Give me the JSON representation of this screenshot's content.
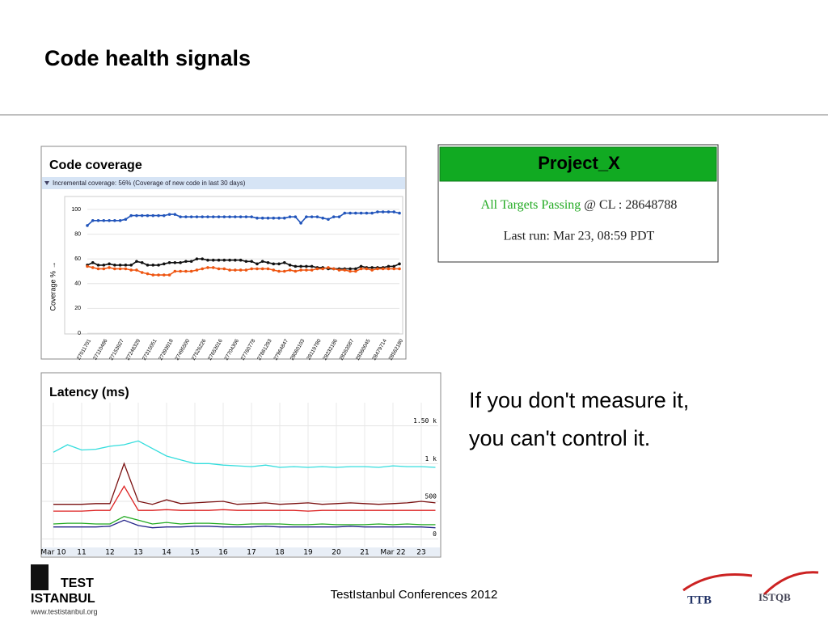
{
  "title": "Code health signals",
  "chart_data": [
    {
      "type": "line",
      "title": "Code coverage",
      "subtitle": "Incremental coverage: 56% (Coverage of new code in last 30 days)",
      "ylabel": "Coverage % →",
      "categories": [
        "27011701",
        null,
        null,
        "27110486",
        null,
        null,
        "27153927",
        null,
        null,
        "27248329",
        null,
        null,
        "27315051",
        null,
        null,
        "27393918",
        null,
        null,
        "27495500",
        null,
        null,
        "27526226",
        null,
        null,
        "27653016",
        null,
        null,
        "27704306",
        null,
        null,
        "27760778",
        null,
        null,
        "27861293",
        null,
        null,
        "27964847",
        null,
        null,
        "28060103",
        null,
        null,
        "28119780",
        null,
        null,
        "28232186",
        null,
        null,
        "28263587",
        null,
        null,
        "28360045",
        null,
        null,
        "28479714",
        null,
        null,
        "28562180"
      ],
      "series": [
        {
          "color": "#2255bb",
          "values": [
            87,
            91,
            91,
            91,
            91,
            91,
            91,
            92,
            95,
            95,
            95,
            95,
            95,
            95,
            95,
            96,
            96,
            94,
            94,
            94,
            94,
            94,
            94,
            94,
            94,
            94,
            94,
            94,
            94,
            94,
            94,
            93,
            93,
            93,
            93,
            93,
            93,
            94,
            94,
            89,
            94,
            94,
            94,
            93,
            92,
            94,
            94,
            97,
            97,
            97,
            97,
            97,
            97,
            98,
            98,
            98,
            98,
            97
          ]
        },
        {
          "color": "#111111",
          "values": [
            55,
            57,
            55,
            55,
            56,
            55,
            55,
            55,
            55,
            58,
            57,
            55,
            55,
            55,
            56,
            57,
            57,
            57,
            58,
            58,
            60,
            60,
            59,
            59,
            59,
            59,
            59,
            59,
            59,
            58,
            58,
            56,
            58,
            57,
            56,
            56,
            57,
            55,
            54,
            54,
            54,
            54,
            53,
            53,
            52,
            52,
            52,
            52,
            52,
            52,
            54,
            53,
            53,
            53,
            53,
            54,
            54,
            56
          ]
        },
        {
          "color": "#ee5511",
          "values": [
            54,
            53,
            52,
            52,
            53,
            52,
            52,
            52,
            51,
            51,
            49,
            48,
            47,
            47,
            47,
            47,
            50,
            50,
            50,
            50,
            51,
            52,
            53,
            53,
            52,
            52,
            51,
            51,
            51,
            51,
            52,
            52,
            52,
            52,
            51,
            50,
            50,
            51,
            50,
            51,
            51,
            51,
            52,
            52,
            53,
            52,
            51,
            51,
            50,
            50,
            52,
            52,
            51,
            52,
            52,
            52,
            52,
            52
          ]
        }
      ],
      "ylim": [
        0,
        100
      ],
      "yticks": [
        0,
        20,
        40,
        60,
        80,
        100
      ],
      "grid": true
    },
    {
      "type": "line",
      "title": "Latency (ms)",
      "x": [
        10,
        10.5,
        11,
        11.5,
        12,
        12.5,
        13,
        13.5,
        14,
        14.5,
        15,
        15.5,
        16,
        16.5,
        17,
        17.5,
        18,
        18.5,
        19,
        19.5,
        20,
        20.5,
        21,
        21.5,
        22,
        22.5,
        23,
        23.5
      ],
      "series": [
        {
          "color": "#33dddd",
          "values": [
            1150,
            1250,
            1180,
            1190,
            1230,
            1250,
            1300,
            1200,
            1100,
            1050,
            1000,
            1000,
            980,
            970,
            960,
            980,
            950,
            960,
            950,
            960,
            950,
            960,
            960,
            950,
            970,
            960,
            960,
            950
          ]
        },
        {
          "color": "#7a1010",
          "values": [
            460,
            460,
            460,
            470,
            470,
            1000,
            500,
            460,
            520,
            470,
            480,
            490,
            500,
            460,
            470,
            480,
            460,
            470,
            480,
            460,
            470,
            480,
            470,
            460,
            470,
            480,
            500,
            480
          ]
        },
        {
          "color": "#dd2222",
          "values": [
            370,
            370,
            370,
            380,
            380,
            700,
            380,
            380,
            390,
            380,
            380,
            380,
            390,
            380,
            380,
            380,
            380,
            380,
            370,
            380,
            380,
            380,
            380,
            380,
            380,
            380,
            380,
            380
          ]
        },
        {
          "color": "#22aa22",
          "values": [
            200,
            210,
            210,
            200,
            200,
            300,
            250,
            200,
            220,
            200,
            210,
            210,
            200,
            190,
            200,
            200,
            200,
            190,
            190,
            200,
            190,
            190,
            190,
            200,
            190,
            200,
            190,
            190
          ]
        },
        {
          "color": "#222288",
          "values": [
            160,
            160,
            160,
            160,
            170,
            250,
            180,
            150,
            160,
            160,
            170,
            170,
            160,
            160,
            160,
            170,
            160,
            160,
            160,
            160,
            160,
            170,
            160,
            160,
            160,
            160,
            160,
            150
          ]
        }
      ],
      "xlim": [
        9.6,
        23.6
      ],
      "xticks": [
        {
          "value": 10,
          "label": "Mar 10"
        },
        11,
        12,
        13,
        14,
        15,
        16,
        17,
        18,
        19,
        20,
        21,
        {
          "value": 22,
          "label": "Mar 22"
        },
        23
      ],
      "ylim": [
        -100,
        1700
      ],
      "yticks": [
        0,
        500,
        {
          "value": 1000,
          "label": "1 k"
        },
        {
          "value": 1500,
          "label": "1.50 k"
        }
      ],
      "grid": true
    }
  ],
  "status": {
    "project": "Project_X",
    "passing": "All Targets Passing",
    "cl": "@ CL : 28648788",
    "last_run": "Last run: Mar 23, 08:59 PDT"
  },
  "quote": [
    "If you don't measure it,",
    "you can't control it."
  ],
  "footer": "TestIstanbul Conferences 2012",
  "logos": {
    "test": "TEST",
    "istanbul": "ISTANBUL",
    "url": "www.testistanbul.org",
    "ttb": "TTB",
    "istqb": "ISTQB"
  }
}
